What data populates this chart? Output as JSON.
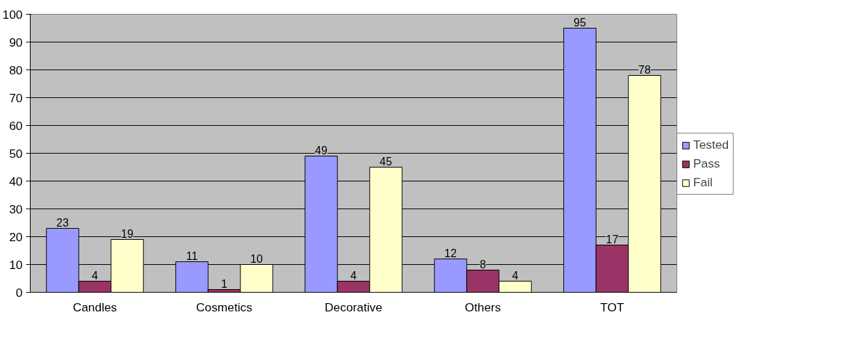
{
  "chart_data": {
    "type": "bar",
    "categories": [
      "Candles",
      "Cosmetics",
      "Decorative",
      "Others",
      "TOT"
    ],
    "series": [
      {
        "name": "Tested",
        "color": "#9999ff",
        "values": [
          23,
          11,
          49,
          12,
          95
        ]
      },
      {
        "name": "Pass",
        "color": "#993366",
        "values": [
          4,
          1,
          4,
          8,
          17
        ]
      },
      {
        "name": "Fail",
        "color": "#ffffcc",
        "values": [
          19,
          10,
          45,
          4,
          78
        ]
      }
    ],
    "ylim": [
      0,
      100
    ],
    "yticks": [
      0,
      10,
      20,
      30,
      40,
      50,
      60,
      70,
      80,
      90,
      100
    ],
    "grid": "y",
    "legend": "right",
    "data_labels": true
  }
}
